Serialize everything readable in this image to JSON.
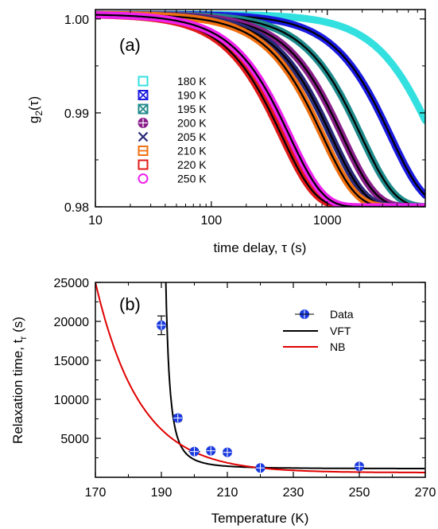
{
  "chart_data": [
    {
      "type": "line",
      "panel_label": "(a)",
      "xlabel": "time delay, τ (s)",
      "ylabel_main": "g",
      "ylabel_sub": "2",
      "ylabel_tail": "(τ)",
      "xscale": "log",
      "xlim": [
        10,
        7000
      ],
      "ylim": [
        0.98,
        1.001
      ],
      "x_ticks": [
        {
          "v": 10,
          "label": "10"
        },
        {
          "v": 100,
          "label": "100"
        },
        {
          "v": 1000,
          "label": "1000"
        }
      ],
      "y_ticks": [
        {
          "v": 1.0,
          "label": "1.00"
        },
        {
          "v": 0.99,
          "label": "0.99"
        },
        {
          "v": 0.98,
          "label": "0.98"
        }
      ],
      "legend_position": "left",
      "series": [
        {
          "name": "180 K",
          "marker": "square-open",
          "color": "#33e0e0",
          "tau": 12000
        },
        {
          "name": "190 K",
          "marker": "square-x",
          "color": "#1a1ae0",
          "tau": 5200
        },
        {
          "name": "195 K",
          "marker": "square-x",
          "color": "#1f8a8a",
          "tau": 2900
        },
        {
          "name": "200 K",
          "marker": "circle-plus",
          "color": "#8a1f8a",
          "tau": 2000
        },
        {
          "name": "205 K",
          "marker": "x",
          "color": "#2a2a7a",
          "tau": 1600
        },
        {
          "name": "210 K",
          "marker": "square-minus",
          "color": "#f07010",
          "tau": 1350
        },
        {
          "name": "220 K",
          "marker": "square-open",
          "color": "#e01a1a",
          "tau": 600
        },
        {
          "name": "250 K",
          "marker": "circle-open",
          "color": "#ee22ee",
          "tau": 700
        }
      ]
    },
    {
      "type": "scatter",
      "panel_label": "(b)",
      "xlabel": "Temperature (K)",
      "ylabel_main": "Relaxation time, t",
      "ylabel_sub": "r",
      "ylabel_tail": " (s)",
      "xlim": [
        170,
        270
      ],
      "ylim": [
        0,
        25000
      ],
      "x_ticks": [
        170,
        190,
        210,
        230,
        250,
        270
      ],
      "y_ticks": [
        5000,
        10000,
        15000,
        20000,
        25000
      ],
      "legend_position": "top-right",
      "series": [
        {
          "name": "Data",
          "marker": "circle-plus",
          "color": "#1a3ae0",
          "x": [
            190,
            195,
            200,
            205,
            210,
            220,
            250
          ],
          "y": [
            19500,
            7600,
            3300,
            3400,
            3200,
            1200,
            1400
          ],
          "yerr": [
            1200,
            400,
            300,
            200,
            200,
            100,
            100
          ],
          "xerr": [
            0.5,
            0.5,
            1.0,
            0.5,
            0.5,
            0.5,
            0.5
          ]
        },
        {
          "name": "VFT",
          "type": "line",
          "color": "#000000"
        },
        {
          "name": "NB",
          "type": "line",
          "color": "#e00000"
        }
      ]
    }
  ]
}
